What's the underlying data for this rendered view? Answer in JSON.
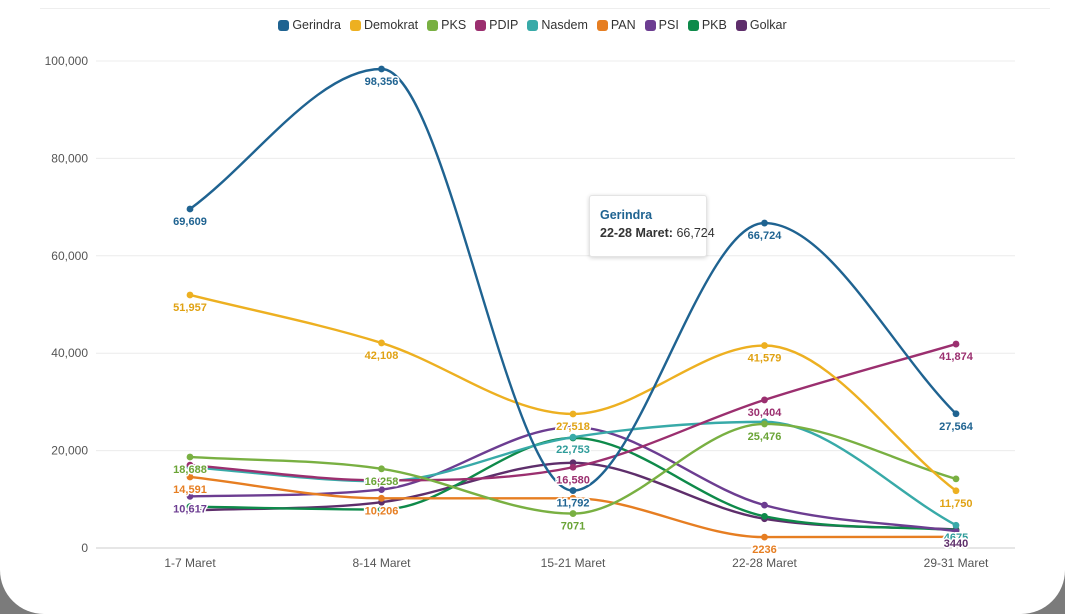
{
  "chart_data": {
    "type": "line",
    "categories": [
      "1-7 Maret",
      "8-14 Maret",
      "15-21 Maret",
      "22-28 Maret",
      "29-31 Maret"
    ],
    "ylim": [
      0,
      100000
    ],
    "yticks": [
      0,
      20000,
      40000,
      60000,
      80000,
      100000
    ],
    "ytick_labels": [
      "0",
      "20,000",
      "40,000",
      "60,000",
      "80,000",
      "100,000"
    ],
    "grid": true,
    "legend_position": "top-center",
    "series": [
      {
        "name": "Gerindra",
        "color": "#1f6391",
        "values": [
          69609,
          98356,
          11792,
          66724,
          27564
        ]
      },
      {
        "name": "Demokrat",
        "color": "#edb021",
        "values": [
          51957,
          42108,
          27518,
          41579,
          11750
        ]
      },
      {
        "name": "PKS",
        "color": "#79b042",
        "values": [
          18688,
          16258,
          7071,
          25476,
          14200
        ]
      },
      {
        "name": "PDIP",
        "color": "#9b2f6f",
        "values": [
          17000,
          13900,
          16580,
          30404,
          41874
        ]
      },
      {
        "name": "Nasdem",
        "color": "#38aaa8",
        "values": [
          16600,
          13700,
          22753,
          25900,
          4675
        ]
      },
      {
        "name": "PAN",
        "color": "#e67e22",
        "values": [
          14591,
          10206,
          10200,
          2236,
          2300
        ]
      },
      {
        "name": "PSI",
        "color": "#6c3d91",
        "values": [
          10617,
          12000,
          24800,
          8800,
          3440
        ]
      },
      {
        "name": "PKB",
        "color": "#0e8a4a",
        "values": [
          8500,
          7900,
          22600,
          6500,
          3700
        ]
      },
      {
        "name": "Golkar",
        "color": "#5e2e6b",
        "values": [
          7700,
          9400,
          17500,
          6000,
          3800
        ]
      }
    ],
    "data_labels": [
      {
        "series": 0,
        "index": 0,
        "text": "69,609",
        "color": "#1f6391"
      },
      {
        "series": 0,
        "index": 1,
        "text": "98,356",
        "color": "#1f6391"
      },
      {
        "series": 0,
        "index": 2,
        "text": "11,792",
        "color": "#1f6391"
      },
      {
        "series": 0,
        "index": 3,
        "text": "66,724",
        "color": "#1f6391"
      },
      {
        "series": 0,
        "index": 4,
        "text": "27,564",
        "color": "#1f6391"
      },
      {
        "series": 1,
        "index": 0,
        "text": "51,957",
        "color": "#e0a213"
      },
      {
        "series": 1,
        "index": 1,
        "text": "42,108",
        "color": "#e0a213"
      },
      {
        "series": 1,
        "index": 2,
        "text": "27,518",
        "color": "#e0a213"
      },
      {
        "series": 1,
        "index": 3,
        "text": "41,579",
        "color": "#e0a213"
      },
      {
        "series": 1,
        "index": 4,
        "text": "11,750",
        "color": "#e0a213"
      },
      {
        "series": 2,
        "index": 0,
        "text": "18,688",
        "color": "#6aa436"
      },
      {
        "series": 2,
        "index": 1,
        "text": "16,258",
        "color": "#6aa436"
      },
      {
        "series": 2,
        "index": 2,
        "text": "7071",
        "color": "#6aa436"
      },
      {
        "series": 2,
        "index": 3,
        "text": "25,476",
        "color": "#6aa436"
      },
      {
        "series": 3,
        "index": 2,
        "text": "16,580",
        "color": "#9b2f6f"
      },
      {
        "series": 3,
        "index": 3,
        "text": "30,404",
        "color": "#9b2f6f"
      },
      {
        "series": 3,
        "index": 4,
        "text": "41,874",
        "color": "#9b2f6f"
      },
      {
        "series": 4,
        "index": 2,
        "text": "22,753",
        "color": "#2f9c9a"
      },
      {
        "series": 4,
        "index": 4,
        "text": "4675",
        "color": "#2f9c9a"
      },
      {
        "series": 5,
        "index": 0,
        "text": "14,591",
        "color": "#e67e22"
      },
      {
        "series": 5,
        "index": 1,
        "text": "10,206",
        "color": "#e67e22"
      },
      {
        "series": 5,
        "index": 3,
        "text": "2236",
        "color": "#e67e22"
      },
      {
        "series": 6,
        "index": 0,
        "text": "10,617",
        "color": "#6c3d91"
      },
      {
        "series": 6,
        "index": 4,
        "text": "3440",
        "color": "#5e2e6b"
      }
    ],
    "tooltip": {
      "series": "Gerindra",
      "category": "22-28 Maret:",
      "value": "66,724"
    }
  }
}
